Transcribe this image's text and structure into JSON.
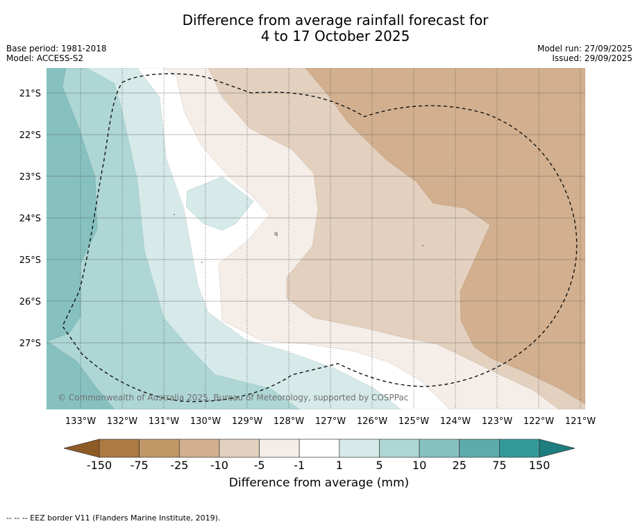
{
  "title": {
    "line1": "Difference from average rainfall forecast for",
    "line2": "4 to 17 October 2025"
  },
  "info_left": {
    "base_period": "Base period: 1981-2018",
    "model": "Model: ACCESS-S2"
  },
  "info_right": {
    "model_run": "Model run: 27/09/2025",
    "issued": "Issued: 29/09/2025"
  },
  "map": {
    "lat_labels": [
      "21°S",
      "22°S",
      "23°S",
      "24°S",
      "25°S",
      "26°S",
      "27°S"
    ],
    "lon_labels": [
      "133°W",
      "132°W",
      "131°W",
      "130°W",
      "129°W",
      "128°W",
      "127°W",
      "126°W",
      "125°W",
      "124°W",
      "123°W",
      "122°W",
      "121°W"
    ],
    "copyright": "© Commonwealth of Australia 2025, Bureau of Meteorology, supported by COSPPac",
    "eez_line": "EEZ border (dashed)"
  },
  "colorbar": {
    "title": "Difference from average (mm)",
    "ticks": [
      "-150",
      "-75",
      "-25",
      "-10",
      "-5",
      "-1",
      "1",
      "5",
      "10",
      "25",
      "75",
      "150"
    ],
    "colors": [
      "#ac7a43",
      "#c29768",
      "#d2b08f",
      "#e3d0bf",
      "#f4ede8",
      "#ffffff",
      "#d5eae9",
      "#aed6d5",
      "#86c1c0",
      "#5dacab",
      "#35999a"
    ],
    "extend_low_color": "#8e5a25",
    "extend_high_color": "#1e7d7e"
  },
  "footer": {
    "legend_text": "--  --  -- EEZ border V11 (Flanders Marine Institute, 2019)."
  }
}
